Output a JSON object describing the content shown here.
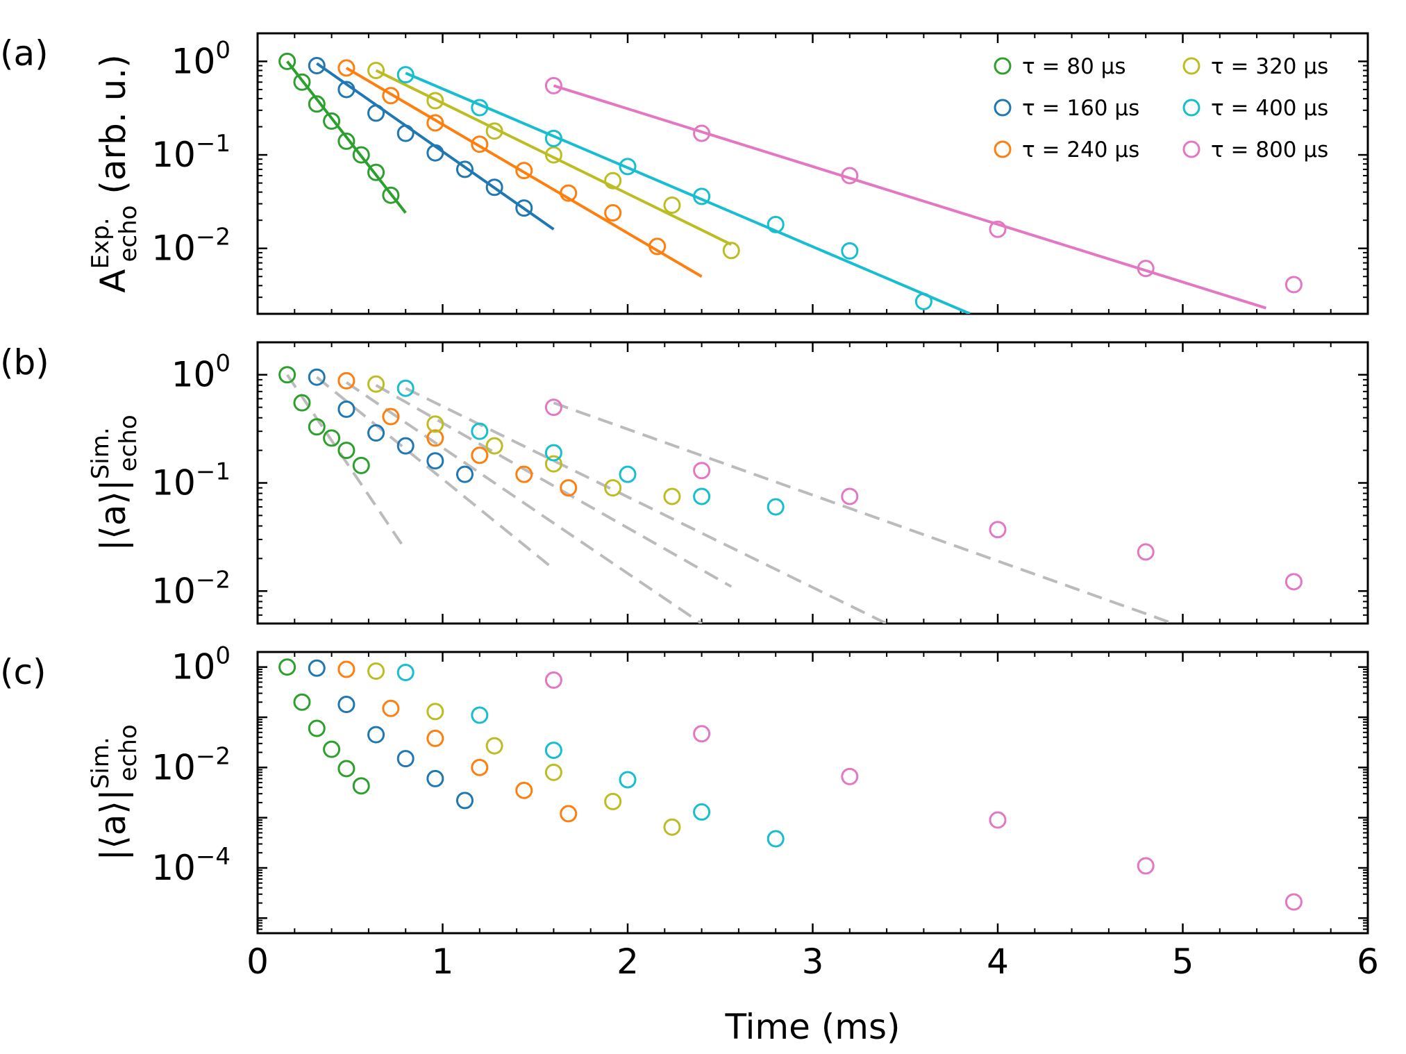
{
  "chart_data": {
    "type": "scatter",
    "xlabel": "Time (ms)",
    "xlim": [
      0,
      6
    ],
    "xticks": [
      "0",
      "1",
      "2",
      "3",
      "4",
      "5",
      "6"
    ],
    "colors": {
      "80": "#2ca02c",
      "160": "#1f77b4",
      "240": "#ff7f0e",
      "320": "#bcbd22",
      "400": "#17becf",
      "800": "#e377c2",
      "reference": "#bbbbbb"
    },
    "legend": {
      "placement": "top-right",
      "entries": [
        {
          "key": "80",
          "label": "τ = 80 μs"
        },
        {
          "key": "320",
          "label": "τ = 320 μs"
        },
        {
          "key": "160",
          "label": "τ = 160 μs"
        },
        {
          "key": "400",
          "label": "τ = 400 μs"
        },
        {
          "key": "240",
          "label": "τ = 240 μs"
        },
        {
          "key": "800",
          "label": "τ = 800 μs"
        }
      ]
    },
    "panels": [
      {
        "id": "a",
        "label": "(a)",
        "ylabel_main": "A",
        "ylabel_sup": "Exp.",
        "ylabel_sub": "echo",
        "ylabel_tail": " (arb. u.)",
        "yscale": "log",
        "ylim_exp": [
          -2.7,
          0.3
        ],
        "yticks": [
          0,
          -1,
          -2
        ],
        "series": [
          {
            "tau": "80",
            "x": [
              0.16,
              0.24,
              0.32,
              0.4,
              0.48,
              0.56,
              0.64,
              0.72
            ],
            "y": [
              1.0,
              0.6,
              0.35,
              0.23,
              0.14,
              0.1,
              0.065,
              0.037
            ],
            "fit": {
              "x": [
                0.16,
                0.8
              ],
              "y": [
                1.0,
                0.024
              ]
            }
          },
          {
            "tau": "160",
            "x": [
              0.32,
              0.48,
              0.64,
              0.8,
              0.96,
              1.12,
              1.28,
              1.44
            ],
            "y": [
              0.9,
              0.5,
              0.28,
              0.17,
              0.105,
              0.07,
              0.045,
              0.027
            ],
            "fit": {
              "x": [
                0.32,
                1.6
              ],
              "y": [
                0.95,
                0.016
              ]
            }
          },
          {
            "tau": "240",
            "x": [
              0.48,
              0.72,
              0.96,
              1.2,
              1.44,
              1.68,
              1.92,
              2.16
            ],
            "y": [
              0.85,
              0.43,
              0.22,
              0.13,
              0.068,
              0.039,
              0.024,
              0.0105
            ],
            "fit": {
              "x": [
                0.48,
                2.4
              ],
              "y": [
                0.85,
                0.005
              ]
            }
          },
          {
            "tau": "320",
            "x": [
              0.64,
              0.96,
              1.28,
              1.6,
              1.92,
              2.24,
              2.56
            ],
            "y": [
              0.8,
              0.38,
              0.18,
              0.1,
              0.053,
              0.029,
              0.0095
            ],
            "fit": {
              "x": [
                0.64,
                2.56
              ],
              "y": [
                0.8,
                0.011
              ]
            }
          },
          {
            "tau": "400",
            "x": [
              0.8,
              1.2,
              1.6,
              2.0,
              2.4,
              2.8,
              3.2,
              3.6
            ],
            "y": [
              0.72,
              0.32,
              0.15,
              0.075,
              0.036,
              0.018,
              0.0094,
              0.0027
            ],
            "fit": {
              "x": [
                0.8,
                3.85
              ],
              "y": [
                0.75,
                0.002
              ]
            }
          },
          {
            "tau": "800",
            "x": [
              1.6,
              2.4,
              3.2,
              4.0,
              4.8,
              5.6
            ],
            "y": [
              0.55,
              0.17,
              0.06,
              0.016,
              0.0061,
              0.0041
            ],
            "fit": {
              "x": [
                1.6,
                5.45
              ],
              "y": [
                0.55,
                0.0023
              ]
            }
          }
        ]
      },
      {
        "id": "b",
        "label": "(b)",
        "ylabel_main": "|⟨a⟩|",
        "ylabel_sup": "Sim.",
        "ylabel_sub": "echo",
        "ylabel_tail": "",
        "yscale": "log",
        "ylim_exp": [
          -2.3,
          0.3
        ],
        "yticks": [
          0,
          -1,
          -2
        ],
        "series": [
          {
            "tau": "80",
            "x": [
              0.16,
              0.24,
              0.32,
              0.4,
              0.48,
              0.56
            ],
            "y": [
              1.0,
              0.55,
              0.33,
              0.26,
              0.2,
              0.145
            ]
          },
          {
            "tau": "160",
            "x": [
              0.32,
              0.48,
              0.64,
              0.8,
              0.96,
              1.12
            ],
            "y": [
              0.95,
              0.48,
              0.29,
              0.22,
              0.16,
              0.12
            ]
          },
          {
            "tau": "240",
            "x": [
              0.48,
              0.72,
              0.96,
              1.2,
              1.44,
              1.68
            ],
            "y": [
              0.88,
              0.41,
              0.26,
              0.18,
              0.12,
              0.09
            ]
          },
          {
            "tau": "320",
            "x": [
              0.64,
              0.96,
              1.28,
              1.6,
              1.92,
              2.24
            ],
            "y": [
              0.82,
              0.35,
              0.22,
              0.15,
              0.09,
              0.075
            ]
          },
          {
            "tau": "400",
            "x": [
              0.8,
              1.2,
              1.6,
              2.0,
              2.4,
              2.8
            ],
            "y": [
              0.75,
              0.3,
              0.19,
              0.12,
              0.075,
              0.06
            ]
          },
          {
            "tau": "800",
            "x": [
              1.6,
              2.4,
              3.2,
              4.0,
              4.8,
              5.6
            ],
            "y": [
              0.5,
              0.13,
              0.075,
              0.037,
              0.023,
              0.0122
            ]
          }
        ],
        "reference_lines": [
          {
            "x": [
              0.16,
              0.8
            ],
            "y": [
              1.0,
              0.024
            ]
          },
          {
            "x": [
              0.32,
              1.6
            ],
            "y": [
              0.95,
              0.016
            ]
          },
          {
            "x": [
              0.48,
              2.4
            ],
            "y": [
              0.85,
              0.005
            ]
          },
          {
            "x": [
              0.64,
              2.56
            ],
            "y": [
              0.8,
              0.011
            ]
          },
          {
            "x": [
              0.8,
              3.4
            ],
            "y": [
              0.75,
              0.005
            ]
          },
          {
            "x": [
              1.6,
              4.95
            ],
            "y": [
              0.55,
              0.005
            ]
          }
        ]
      },
      {
        "id": "c",
        "label": "(c)",
        "ylabel_main": "|⟨a⟩|",
        "ylabel_sup": "Sim.",
        "ylabel_sub": "echo",
        "ylabel_tail": "",
        "yscale": "log",
        "ylim_exp": [
          -5.3,
          0.3
        ],
        "yticks": [
          0,
          -2,
          -4
        ],
        "series": [
          {
            "tau": "80",
            "x": [
              0.16,
              0.24,
              0.32,
              0.4,
              0.48,
              0.56
            ],
            "y": [
              1.0,
              0.2,
              0.06,
              0.023,
              0.0095,
              0.0043
            ]
          },
          {
            "tau": "160",
            "x": [
              0.32,
              0.48,
              0.64,
              0.8,
              0.96,
              1.12
            ],
            "y": [
              0.95,
              0.18,
              0.045,
              0.015,
              0.006,
              0.0022
            ]
          },
          {
            "tau": "240",
            "x": [
              0.48,
              0.72,
              0.96,
              1.2,
              1.44,
              1.68
            ],
            "y": [
              0.9,
              0.15,
              0.038,
              0.01,
              0.0035,
              0.0012
            ]
          },
          {
            "tau": "320",
            "x": [
              0.64,
              0.96,
              1.28,
              1.6,
              1.92,
              2.24
            ],
            "y": [
              0.83,
              0.13,
              0.027,
              0.008,
              0.0021,
              0.00065
            ]
          },
          {
            "tau": "400",
            "x": [
              0.8,
              1.2,
              1.6,
              2.0,
              2.4,
              2.8
            ],
            "y": [
              0.78,
              0.11,
              0.022,
              0.0057,
              0.0013,
              0.00038
            ]
          },
          {
            "tau": "800",
            "x": [
              1.6,
              2.4,
              3.2,
              4.0,
              4.8,
              5.6
            ],
            "y": [
              0.55,
              0.047,
              0.0066,
              0.0009,
              0.00011,
              2.1e-05
            ]
          }
        ]
      }
    ]
  }
}
